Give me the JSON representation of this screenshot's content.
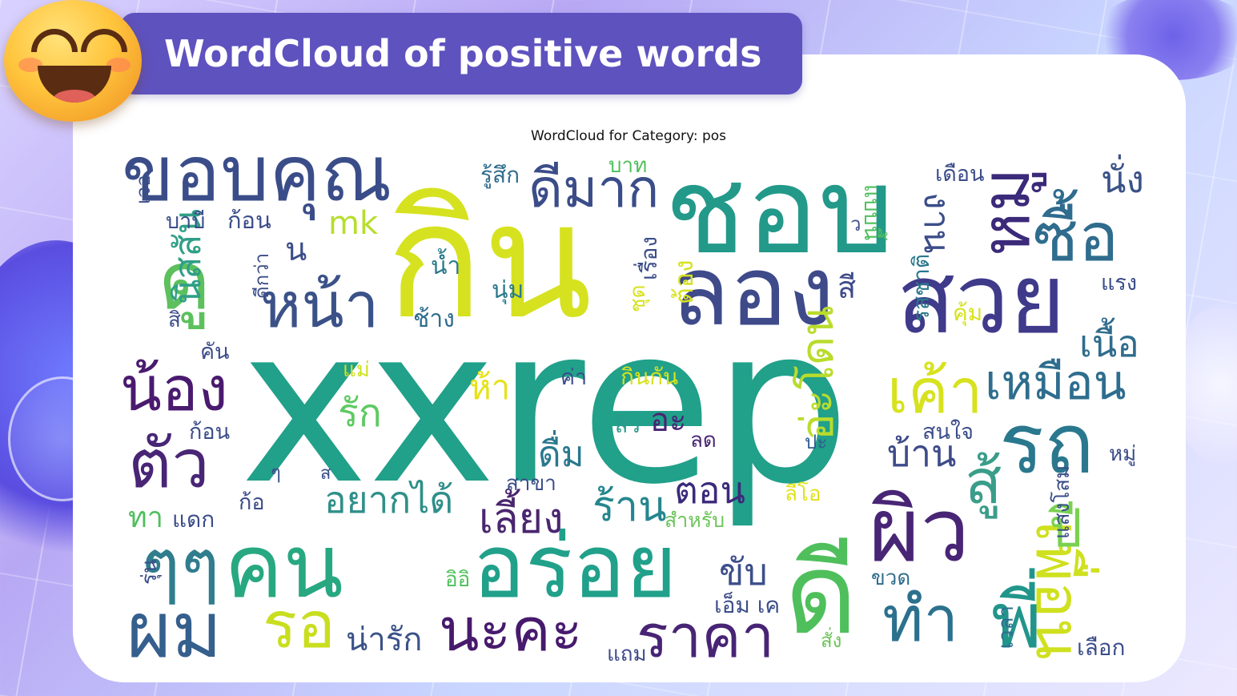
{
  "header": {
    "title": "WordCloud of positive words",
    "emoji_icon": "smiling-face-icon"
  },
  "wordcloud": {
    "title": "WordCloud for Category: pos",
    "palette": [
      "#440154",
      "#3b528b",
      "#21918c",
      "#5ec962",
      "#fde725"
    ],
    "words": [
      {
        "text": "xxrep",
        "color": "#21a08a"
      },
      {
        "text": "กิน",
        "color": "#d6e21f"
      },
      {
        "text": "ชอบ",
        "color": "#23998a"
      },
      {
        "text": "ขอบคุณ",
        "color": "#3b4d89"
      },
      {
        "text": "ดีมาก",
        "color": "#3b4d89"
      },
      {
        "text": "ลอง",
        "color": "#3e4a89"
      },
      {
        "text": "สวย",
        "color": "#3f3a8a"
      },
      {
        "text": "หมู",
        "color": "#3b2a7a"
      },
      {
        "text": "ซื้อ",
        "color": "#2f6c8e"
      },
      {
        "text": "ดู",
        "color": "#5cc05d"
      },
      {
        "text": "หน้า",
        "color": "#3b5288"
      },
      {
        "text": "น้อง",
        "color": "#4a1a6f"
      },
      {
        "text": "ตัว",
        "color": "#482575"
      },
      {
        "text": "ๆๆ",
        "color": "#2f7d8d"
      },
      {
        "text": "คน",
        "color": "#28a880"
      },
      {
        "text": "อร่อย",
        "color": "#21a08a"
      },
      {
        "text": "ดี",
        "color": "#4fbf5c"
      },
      {
        "text": "ผิว",
        "color": "#482575"
      },
      {
        "text": "ผม",
        "color": "#355f8d"
      },
      {
        "text": "รอ",
        "color": "#c9de1f"
      },
      {
        "text": "นะคะ",
        "color": "#471a6d"
      },
      {
        "text": "ราคา",
        "color": "#482475"
      },
      {
        "text": "ทำ",
        "color": "#2b718e"
      },
      {
        "text": "พี่",
        "color": "#21958b"
      },
      {
        "text": "เค้า",
        "color": "#d7e21f"
      },
      {
        "text": "เหมือน",
        "color": "#2e6d8e"
      },
      {
        "text": "รถ",
        "color": "#2a788e"
      },
      {
        "text": "สู้",
        "color": "#3a9d8a"
      },
      {
        "text": "เพื่อน",
        "color": "#cfe01f"
      },
      {
        "text": "ปี",
        "color": "#7ad151"
      },
      {
        "text": "เนื้อ",
        "color": "#2f6c8e"
      },
      {
        "text": "บ้าน",
        "color": "#3e4b89"
      },
      {
        "text": "อ่ะโดน",
        "color": "#b9dc2c"
      },
      {
        "text": "ร้าน",
        "color": "#24868e"
      },
      {
        "text": "เลี้ยง",
        "color": "#4a266f"
      },
      {
        "text": "อยากได้",
        "color": "#2f8f8a"
      },
      {
        "text": "ดื่ม",
        "color": "#2a788e"
      },
      {
        "text": "ตอน",
        "color": "#3b2a7a"
      },
      {
        "text": "ขับ",
        "color": "#3d4e8a"
      },
      {
        "text": "อะ",
        "color": "#482475"
      },
      {
        "text": "รัก",
        "color": "#5ec962"
      },
      {
        "text": "ห้า",
        "color": "#e6e21a"
      },
      {
        "text": "นิสสัน",
        "color": "#2f9f87"
      },
      {
        "text": "บาบี",
        "color": "#3b4d89"
      },
      {
        "text": "ก้อน",
        "color": "#3b4d89"
      },
      {
        "text": "mk",
        "color": "#b7de2c"
      },
      {
        "text": "น",
        "color": "#3b4d89"
      },
      {
        "text": "น้ำ",
        "color": "#2c7a8d"
      },
      {
        "text": "นุ่ม",
        "color": "#2c7a8d"
      },
      {
        "text": "ช้าง",
        "color": "#2f6c8e"
      },
      {
        "text": "รู้สึก",
        "color": "#2f6c8e"
      },
      {
        "text": "บาท",
        "color": "#4fbf5c"
      },
      {
        "text": "เดือน",
        "color": "#3b4d89"
      },
      {
        "text": "งาน",
        "color": "#3b4d89"
      },
      {
        "text": "นั่ง",
        "color": "#3b5288"
      },
      {
        "text": "แรง",
        "color": "#3b4d89"
      },
      {
        "text": "คุ้ม",
        "color": "#d7e21f"
      },
      {
        "text": "รสชาติ",
        "color": "#2a788e"
      },
      {
        "text": "สี",
        "color": "#3e4a89"
      },
      {
        "text": "ชุด",
        "color": "#d7e21f"
      },
      {
        "text": "เรื่อง",
        "color": "#3b4d89"
      },
      {
        "text": "ต้อง",
        "color": "#d7e21f"
      },
      {
        "text": "แม่",
        "color": "#cfe01f"
      },
      {
        "text": "ค่า",
        "color": "#3b4d89"
      },
      {
        "text": "กินกัน",
        "color": "#d7e21f"
      },
      {
        "text": "สิว",
        "color": "#2c9a8a"
      },
      {
        "text": "ลด",
        "color": "#482475"
      },
      {
        "text": "ปะ",
        "color": "#2e5d8e"
      },
      {
        "text": "สนใจ",
        "color": "#3b4d89"
      },
      {
        "text": "หมู่",
        "color": "#3b4d89"
      },
      {
        "text": "ลีโอ",
        "color": "#e2e21a"
      },
      {
        "text": "สาขา",
        "color": "#3b4d89"
      },
      {
        "text": "สำหรับ",
        "color": "#6cc55a"
      },
      {
        "text": "แดก",
        "color": "#3b4d89"
      },
      {
        "text": "ทา",
        "color": "#4fbf5c"
      },
      {
        "text": "ก้อ",
        "color": "#3b4d89"
      },
      {
        "text": "รุ่น",
        "color": "#3b4d89"
      },
      {
        "text": "อิอิ",
        "color": "#4fbf5c"
      },
      {
        "text": "น่ารัก",
        "color": "#3b5288"
      },
      {
        "text": "แถม",
        "color": "#3e4a89"
      },
      {
        "text": "เอ็ม เค",
        "color": "#3b4d89"
      },
      {
        "text": "สั่ง",
        "color": "#6cc55a"
      },
      {
        "text": "เวลา",
        "color": "#2e6d8e"
      },
      {
        "text": "ขวด",
        "color": "#2e6d8e"
      },
      {
        "text": "เลือก",
        "color": "#3b4d89"
      },
      {
        "text": "แสงโสม",
        "color": "#3b4d89"
      },
      {
        "text": "คัน",
        "color": "#3b4d89"
      },
      {
        "text": "ก้อน",
        "color": "#3b4d89"
      },
      {
        "text": "เจอ",
        "color": "#3b4d89"
      },
      {
        "text": "ดีกว่า",
        "color": "#3b4d89"
      },
      {
        "text": "สิ",
        "color": "#3b4d89"
      },
      {
        "text": "ว",
        "color": "#3b4d89"
      },
      {
        "text": "แบบนี้",
        "color": "#4fbf5c"
      },
      {
        "text": "ส",
        "color": "#3b4d89"
      },
      {
        "text": "ๆ",
        "color": "#3b4d89"
      }
    ]
  }
}
